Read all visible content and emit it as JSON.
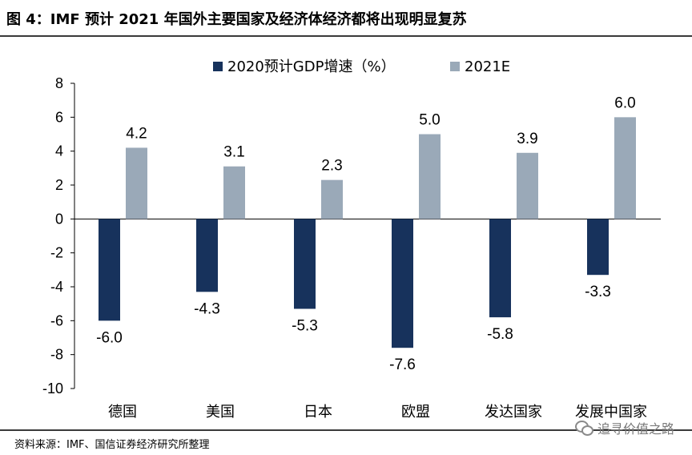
{
  "figure": {
    "title": "图 4：IMF 预计 2021 年国外主要国家及经济体经济都将出现明显复苏",
    "source": "资料来源：IMF、国信证券经济研究所整理",
    "watermark": "追寻价值之路"
  },
  "chart_data": {
    "type": "bar",
    "categories": [
      "德国",
      "美国",
      "日本",
      "欧盟",
      "发达国家",
      "发展中国家"
    ],
    "series": [
      {
        "name": "2020预计GDP增速（%）",
        "color": "#17325c",
        "values": [
          -6.0,
          -4.3,
          -5.3,
          -7.6,
          -5.8,
          -3.3
        ]
      },
      {
        "name": "2021E",
        "color": "#9aa9b8",
        "values": [
          4.2,
          3.1,
          2.3,
          5.0,
          3.9,
          6.0
        ]
      }
    ],
    "ylim": [
      -10,
      8
    ],
    "yticks": [
      8,
      6,
      4,
      2,
      0,
      -2,
      -4,
      -6,
      -8,
      -10
    ],
    "legend_position": "top-center",
    "grid": false
  }
}
